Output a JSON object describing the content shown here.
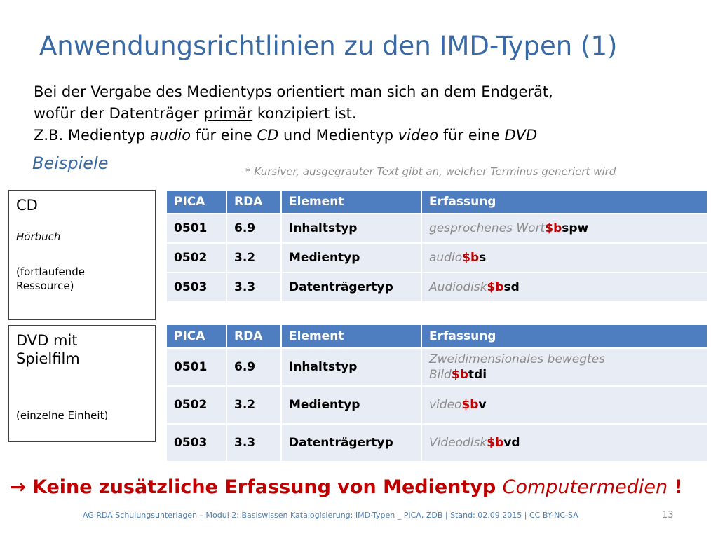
{
  "title": "Anwendungsrichtlinien zu den IMD-Typen (1)",
  "intro": {
    "line1": "Bei der Vergabe des Medientyps orientiert man sich an dem Endgerät,",
    "line2_pre": "wofür der Datenträger ",
    "line2_u": "primär",
    "line2_post": " konzipiert ist.",
    "line3_a": "Z.B. Medientyp ",
    "line3_b": "audio",
    "line3_c": " für eine ",
    "line3_d": "CD",
    "line3_e": " und Medientyp ",
    "line3_f": "video",
    "line3_g": " für eine ",
    "line3_h": "DVD"
  },
  "beispiele": "Beispiele",
  "footnote": "* Kursiver, ausgegrauter Text gibt an, welcher Terminus generiert wird",
  "box1": {
    "title": "CD",
    "subtitle": "Hörbuch",
    "note1": "(fortlaufende",
    "note2": "Ressource)"
  },
  "box2": {
    "title1": "DVD mit",
    "title2": "Spielfilm",
    "note": "(einzelne Einheit)"
  },
  "headers": {
    "pica": "PICA",
    "rda": "RDA",
    "element": "Element",
    "erfassung": "Erfassung"
  },
  "table1": [
    {
      "pica": "0501",
      "rda": "6.9",
      "element": "Inhaltstyp",
      "term": "gesprochenes Wort",
      "sub": "$b",
      "code": "spw"
    },
    {
      "pica": "0502",
      "rda": "3.2",
      "element": "Medientyp",
      "term": "audio",
      "sub": "$b",
      "code": "s"
    },
    {
      "pica": "0503",
      "rda": "3.3",
      "element": "Datenträgertyp",
      "term": "Audiodisk",
      "sub": "$b",
      "code": "sd"
    }
  ],
  "table2": [
    {
      "pica": "0501",
      "rda": "6.9",
      "element": "Inhaltstyp",
      "term1": "Zweidimensionales bewegtes",
      "term2": "Bild",
      "sub": "$b",
      "code": "tdi"
    },
    {
      "pica": "0502",
      "rda": "3.2",
      "element": "Medientyp",
      "term": "video",
      "sub": "$b",
      "code": "v"
    },
    {
      "pica": "0503",
      "rda": "3.3",
      "element": "Datenträgertyp",
      "term": "Videodisk",
      "sub": "$b",
      "code": "vd"
    }
  ],
  "conclusion": {
    "arrow": "→",
    "text": " Keine zusätzliche Erfassung von Medientyp ",
    "italic": "Computermedien",
    "end": " !"
  },
  "footer": "AG RDA Schulungsunterlagen – Modul 2: Basiswissen Katalogisierung: IMD-Typen _ PICA, ZDB | Stand: 02.09.2015 | CC BY-NC-SA",
  "page_number": "13",
  "colors": {
    "title": "#3a6aa6",
    "header_bg": "#4f7ec0",
    "cell_bg": "#e8ecf4",
    "subfield": "#c00000",
    "generated": "#8c8c8c"
  }
}
